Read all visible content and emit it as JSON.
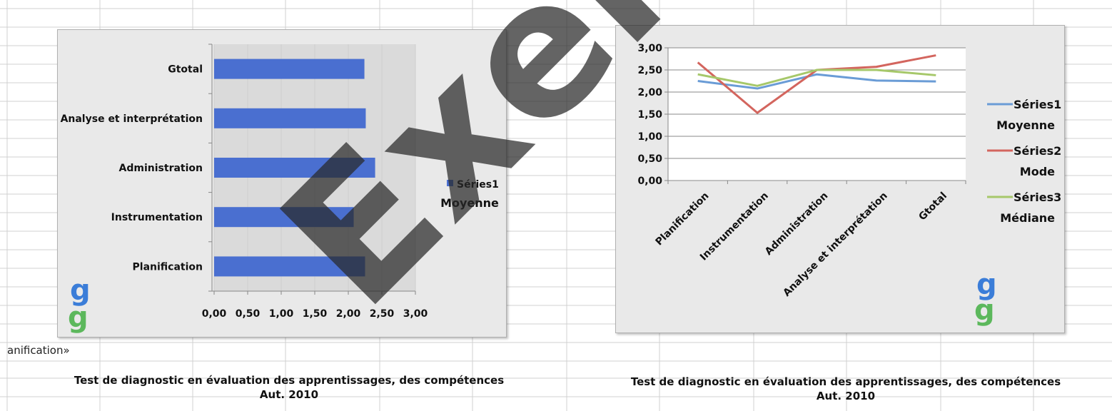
{
  "chart_data": [
    {
      "type": "bar",
      "orientation": "horizontal",
      "categories": [
        "Planification",
        "Instrumentation",
        "Administration",
        "Analyse et interprétation",
        "Gtotal"
      ],
      "series": [
        {
          "name": "Séries1",
          "values": [
            2.25,
            2.08,
            2.4,
            2.26,
            2.24
          ]
        }
      ],
      "legend_entries": [
        "Séries1",
        "Moyenne"
      ],
      "xlim": [
        0,
        3
      ],
      "x_ticks": [
        "0,00",
        "0,50",
        "1,00",
        "1,50",
        "2,00",
        "2,50",
        "3,00"
      ],
      "legend_position": "right",
      "colors": [
        "#4a6fd0"
      ]
    },
    {
      "type": "line",
      "categories": [
        "Planification",
        "Instrumentation",
        "Administration",
        "Analyse et interprétation",
        "Gtotal"
      ],
      "series": [
        {
          "name": "Séries1",
          "label": "Moyenne",
          "values": [
            2.25,
            2.08,
            2.4,
            2.26,
            2.24
          ],
          "color": "#6a9cd6"
        },
        {
          "name": "Séries2",
          "label": "Mode",
          "values": [
            2.67,
            1.53,
            2.5,
            2.57,
            2.83
          ],
          "color": "#d3655e"
        },
        {
          "name": "Séries3",
          "label": "Médiane",
          "values": [
            2.4,
            2.14,
            2.5,
            2.5,
            2.38
          ],
          "color": "#a6c86a"
        }
      ],
      "ylim": [
        0,
        3
      ],
      "y_ticks": [
        "0,00",
        "0,50",
        "1,00",
        "1,50",
        "2,00",
        "2,50",
        "3,00"
      ],
      "grid": true,
      "legend_position": "right"
    }
  ],
  "captions": {
    "fragment": "anification»",
    "left_line1": "Test de diagnostic  en évaluation des apprentissages, des compétences",
    "left_line2": "Aut. 2010",
    "right_line1": "Test de diagnostic  en évaluation des apprentissages, des compétences",
    "right_line2": "Aut. 2010"
  },
  "watermark": "Exem",
  "logo": "g"
}
